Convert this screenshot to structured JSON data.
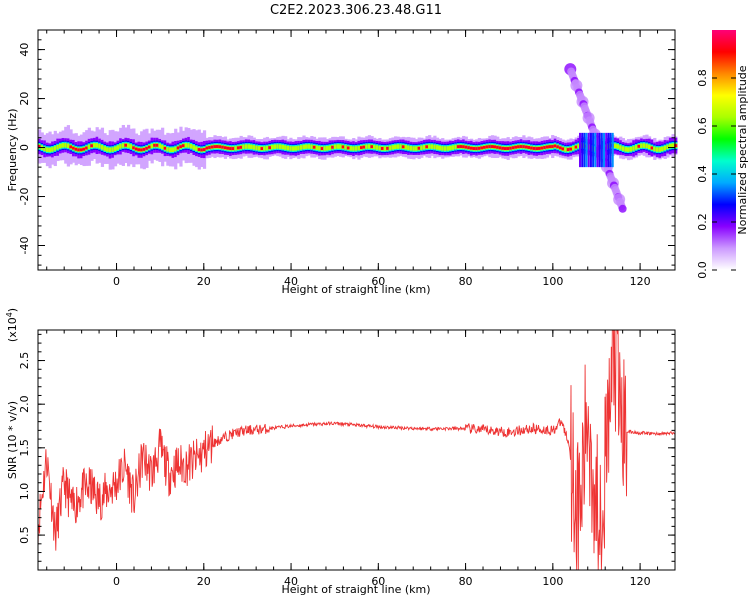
{
  "title": "C2E2.2023.306.23.48.G11",
  "chart_data": [
    {
      "type": "heatmap",
      "xlabel": "Height of straight line (km)",
      "ylabel": "Frequency (Hz)",
      "xlim": [
        -18,
        128
      ],
      "ylim": [
        -50,
        48
      ],
      "xticks": [
        0,
        20,
        40,
        60,
        80,
        100,
        120
      ],
      "yticks": [
        -40,
        -20,
        0,
        20,
        40
      ],
      "colorbar": {
        "label": "Normalized spectral amplitude",
        "range": [
          0,
          1
        ],
        "ticks": [
          "0.0",
          "0.2",
          "0.4",
          "0.6",
          "0.8"
        ],
        "colormap": "gist_ncar_like",
        "colors": [
          "#ffffff",
          "#cc99ff",
          "#8800ff",
          "#0000ff",
          "#00aaff",
          "#00ffcc",
          "#00ff00",
          "#aaff00",
          "#ffff00",
          "#ff8800",
          "#ff0000",
          "#ff0077"
        ]
      },
      "ridge": {
        "frequency_hz": 0,
        "x_range": [
          -18,
          128
        ],
        "peak_regions": [
          [
            -11,
            -7
          ],
          [
            3,
            7
          ],
          [
            18,
            27
          ],
          [
            78,
            102
          ]
        ],
        "disturbance": {
          "x_range": [
            104,
            116
          ],
          "frequency_range": [
            -25,
            32
          ]
        }
      }
    },
    {
      "type": "line",
      "xlabel": "Height of straight line (km)",
      "ylabel": "SNR (10 * v/v)",
      "yscale_label": "(x10",
      "yscale_exp": "4",
      "yscale_close": ")",
      "xlim": [
        -18,
        128
      ],
      "ylim": [
        0.1,
        2.85
      ],
      "xticks": [
        0,
        20,
        40,
        60,
        80,
        100,
        120
      ],
      "yticks": [
        "0.5",
        "1.0",
        "1.5",
        "2.0",
        "2.5"
      ],
      "color": "#ee3333",
      "x": [
        -18,
        -16,
        -14,
        -12,
        -10,
        -8,
        -6,
        -4,
        -2,
        0,
        2,
        4,
        6,
        8,
        10,
        12,
        14,
        16,
        18,
        20,
        22,
        24,
        26,
        28,
        30,
        35,
        40,
        45,
        50,
        55,
        60,
        65,
        70,
        75,
        80,
        85,
        90,
        95,
        100,
        102,
        104,
        106,
        108,
        110,
        112,
        114,
        116,
        118,
        120,
        124,
        128
      ],
      "y": [
        0.6,
        1.4,
        0.5,
        1.1,
        0.8,
        1.0,
        1.05,
        0.9,
        1.0,
        1.1,
        1.3,
        0.9,
        1.4,
        1.2,
        1.5,
        1.2,
        1.3,
        1.3,
        1.35,
        1.45,
        1.55,
        1.6,
        1.65,
        1.68,
        1.7,
        1.72,
        1.75,
        1.77,
        1.78,
        1.76,
        1.74,
        1.73,
        1.72,
        1.72,
        1.72,
        1.7,
        1.68,
        1.72,
        1.7,
        1.8,
        1.5,
        0.6,
        1.9,
        0.8,
        1.2,
        2.6,
        1.7,
        1.68,
        1.67,
        1.66,
        1.67
      ]
    }
  ]
}
